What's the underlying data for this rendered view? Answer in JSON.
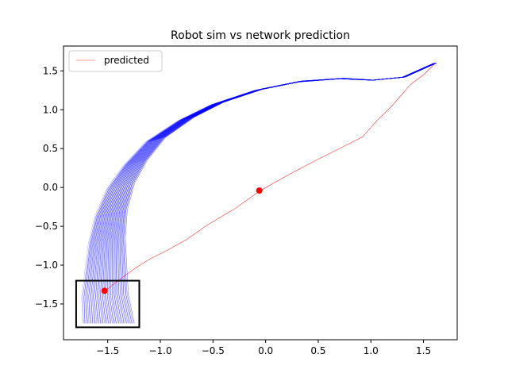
{
  "chart_data": {
    "type": "line",
    "title": "Robot sim vs network prediction",
    "xlabel": "",
    "ylabel": "",
    "xlim": [
      -1.92,
      1.82
    ],
    "ylim": [
      -1.96,
      1.82
    ],
    "x_ticks": [
      -1.5,
      -1.0,
      -0.5,
      0.0,
      0.5,
      1.0,
      1.5
    ],
    "x_tick_labels": [
      "−1.5",
      "−1.0",
      "−0.5",
      "0.0",
      "0.5",
      "1.0",
      "1.5"
    ],
    "y_ticks": [
      -1.5,
      -1.0,
      -0.5,
      0.0,
      0.5,
      1.0,
      1.5
    ],
    "y_tick_labels": [
      "−1.5",
      "−1.0",
      "−0.5",
      "0.0",
      "0.5",
      "1.0",
      "1.5"
    ],
    "grid": false,
    "legend": {
      "position": "upper left",
      "entries": [
        {
          "label": "predicted",
          "color": "#ff9999"
        }
      ]
    },
    "colors": {
      "simulated": "#0000ff",
      "predicted": "#ff0000",
      "box": "#000000"
    },
    "series": [
      {
        "name": "predicted",
        "style": "line",
        "x": [
          -1.52,
          -1.45,
          -1.35,
          -1.25,
          -1.1,
          -0.95,
          -0.75,
          -0.55,
          -0.3,
          -0.05,
          0.2,
          0.45,
          0.7,
          0.92,
          1.05,
          1.2,
          1.38,
          1.5,
          1.6
        ],
        "y": [
          -1.33,
          -1.25,
          -1.15,
          -1.05,
          -0.92,
          -0.82,
          -0.67,
          -0.48,
          -0.28,
          -0.04,
          0.15,
          0.33,
          0.5,
          0.65,
          0.85,
          1.05,
          1.33,
          1.45,
          1.58
        ]
      },
      {
        "name": "markers",
        "style": "points",
        "x": [
          -1.53,
          -0.06
        ],
        "y": [
          -1.33,
          -0.04
        ]
      }
    ],
    "simulated_trajectories": {
      "count": 20,
      "start_x_range": [
        -1.74,
        -1.27
      ],
      "end": [
        1.6,
        1.6
      ],
      "centerline_x": [
        -1.62,
        -1.64,
        -1.62,
        -1.6,
        -1.55,
        -1.45,
        -1.3,
        -1.1,
        -0.8,
        -0.5,
        -0.1,
        0.3,
        0.7,
        1.0,
        1.3,
        1.6
      ],
      "centerline_y": [
        -1.75,
        -1.4,
        -1.05,
        -0.7,
        -0.35,
        0.0,
        0.3,
        0.6,
        0.87,
        1.07,
        1.25,
        1.36,
        1.4,
        1.38,
        1.42,
        1.6
      ]
    },
    "start_box": {
      "x": [
        -1.8,
        -1.2
      ],
      "y": [
        -1.8,
        -1.2
      ]
    }
  }
}
